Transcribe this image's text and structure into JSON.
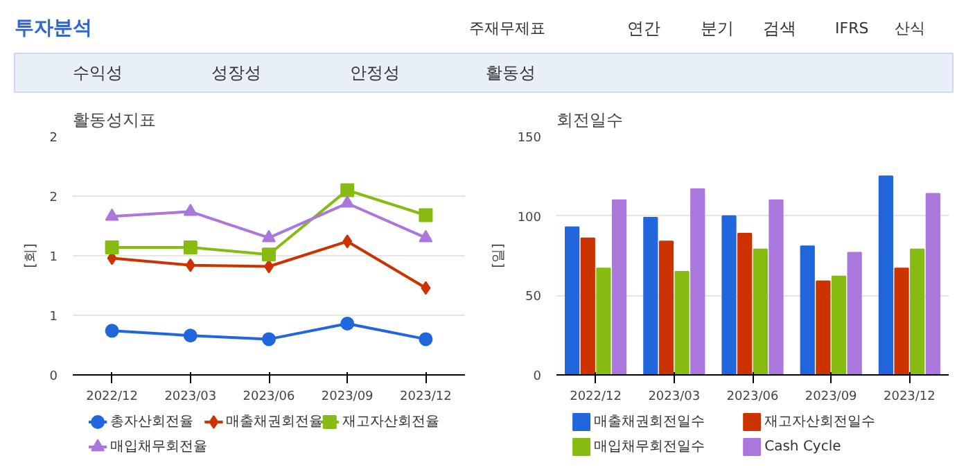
{
  "chart_data": [
    {
      "type": "other",
      "title": "투자분석",
      "annotations": [
        "주재무제표",
        "연간",
        "분기",
        "검색",
        "IFRS",
        "산식",
        "수익성",
        "성장성",
        "안정성",
        "활동성"
      ]
    },
    {
      "type": "line",
      "title": "활동성지표",
      "ylabel": "[회]",
      "categories": [
        "2022/12",
        "2023/03",
        "2023/06",
        "2023/09",
        "2023/12"
      ],
      "ylim": [
        0,
        2
      ],
      "yticks": [
        0,
        {
          "value": 0.5,
          "label": "1"
        },
        1,
        {
          "value": 1.5,
          "label": "2"
        },
        2
      ],
      "grid": "y",
      "legend": "bottom",
      "series": [
        {
          "name": "총자산회전율",
          "color": "#2266dd",
          "marker": "circle",
          "values": [
            0.37,
            0.33,
            0.3,
            0.43,
            0.3
          ]
        },
        {
          "name": "매출채권회전율",
          "color": "#cc3300",
          "marker": "diamond",
          "values": [
            0.98,
            0.92,
            0.91,
            1.12,
            0.73
          ]
        },
        {
          "name": "재고자산회전율",
          "color": "#88bb11",
          "marker": "square",
          "values": [
            1.07,
            1.07,
            1.01,
            1.55,
            1.34
          ]
        },
        {
          "name": "매입채무회전율",
          "color": "#aa77dd",
          "marker": "triangle",
          "values": [
            1.33,
            1.37,
            1.15,
            1.44,
            1.15
          ]
        }
      ]
    },
    {
      "type": "bar",
      "title": "회전일수",
      "ylabel": "[일]",
      "categories": [
        "2022/12",
        "2023/03",
        "2023/06",
        "2023/09",
        "2023/12"
      ],
      "ylim": [
        0,
        150
      ],
      "yticks": [
        0,
        50,
        100,
        150
      ],
      "grid": "y",
      "legend": "bottom",
      "series": [
        {
          "name": "매출채권회전일수",
          "color": "#2266dd",
          "values": [
            93,
            99,
            100,
            81,
            125
          ]
        },
        {
          "name": "재고자산회전일수",
          "color": "#cc3300",
          "values": [
            86,
            84,
            89,
            59,
            67
          ]
        },
        {
          "name": "매입채무회전일수",
          "color": "#88bb11",
          "values": [
            67,
            65,
            79,
            62,
            79
          ]
        },
        {
          "name": "Cash Cycle",
          "color": "#aa77dd",
          "values": [
            110,
            117,
            110,
            77,
            114
          ]
        }
      ]
    }
  ]
}
